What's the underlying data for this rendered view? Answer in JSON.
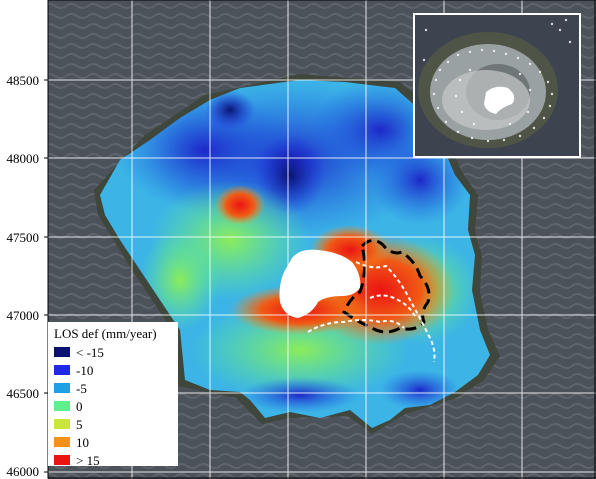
{
  "y_axis": {
    "tick_labels": [
      "48500",
      "48000",
      "47500",
      "47000",
      "46500",
      "46000"
    ]
  },
  "legend": {
    "title": "LOS def (mm/year)",
    "items": [
      {
        "label": "< -15",
        "color": "#0a1470"
      },
      {
        "label": "-10",
        "color": "#1e28e6"
      },
      {
        "label": "-5",
        "color": "#1ea0e6"
      },
      {
        "label": "0",
        "color": "#5ef08c"
      },
      {
        "label": "5",
        "color": "#c8e63c"
      },
      {
        "label": "10",
        "color": "#f59019"
      },
      {
        "label": "> 15",
        "color": "#eb1414"
      }
    ]
  },
  "colors": {
    "sea": "#4b525a",
    "grid": "#ffffff",
    "crater": "#ffffff",
    "outline_dashed_black": "#000000",
    "outline_dashed_white": "#ffffff"
  }
}
